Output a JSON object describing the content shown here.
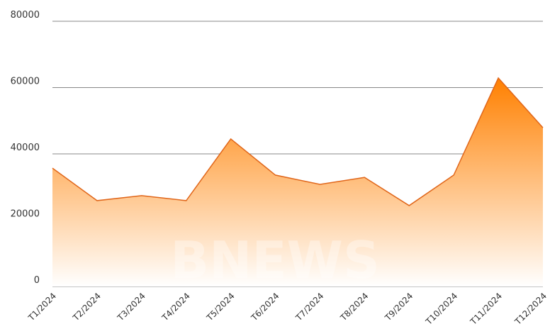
{
  "chart_data": {
    "type": "area",
    "watermark": "BNEWS",
    "categories": [
      "T1/2024",
      "T2/2024",
      "T3/2024",
      "T4/2024",
      "T5/2024",
      "T6/2024",
      "T7/2024",
      "T8/2024",
      "T9/2024",
      "T10/2024",
      "T11/2024",
      "T12/2024"
    ],
    "values": [
      35700,
      25900,
      27400,
      25900,
      44500,
      33600,
      30800,
      32900,
      24400,
      33600,
      62900,
      47900
    ],
    "color": "#ff8000",
    "line_color": "#e0661a",
    "ylim": [
      0,
      80000
    ],
    "yticks": [
      0,
      20000,
      40000,
      60000,
      80000
    ],
    "grid": true
  }
}
